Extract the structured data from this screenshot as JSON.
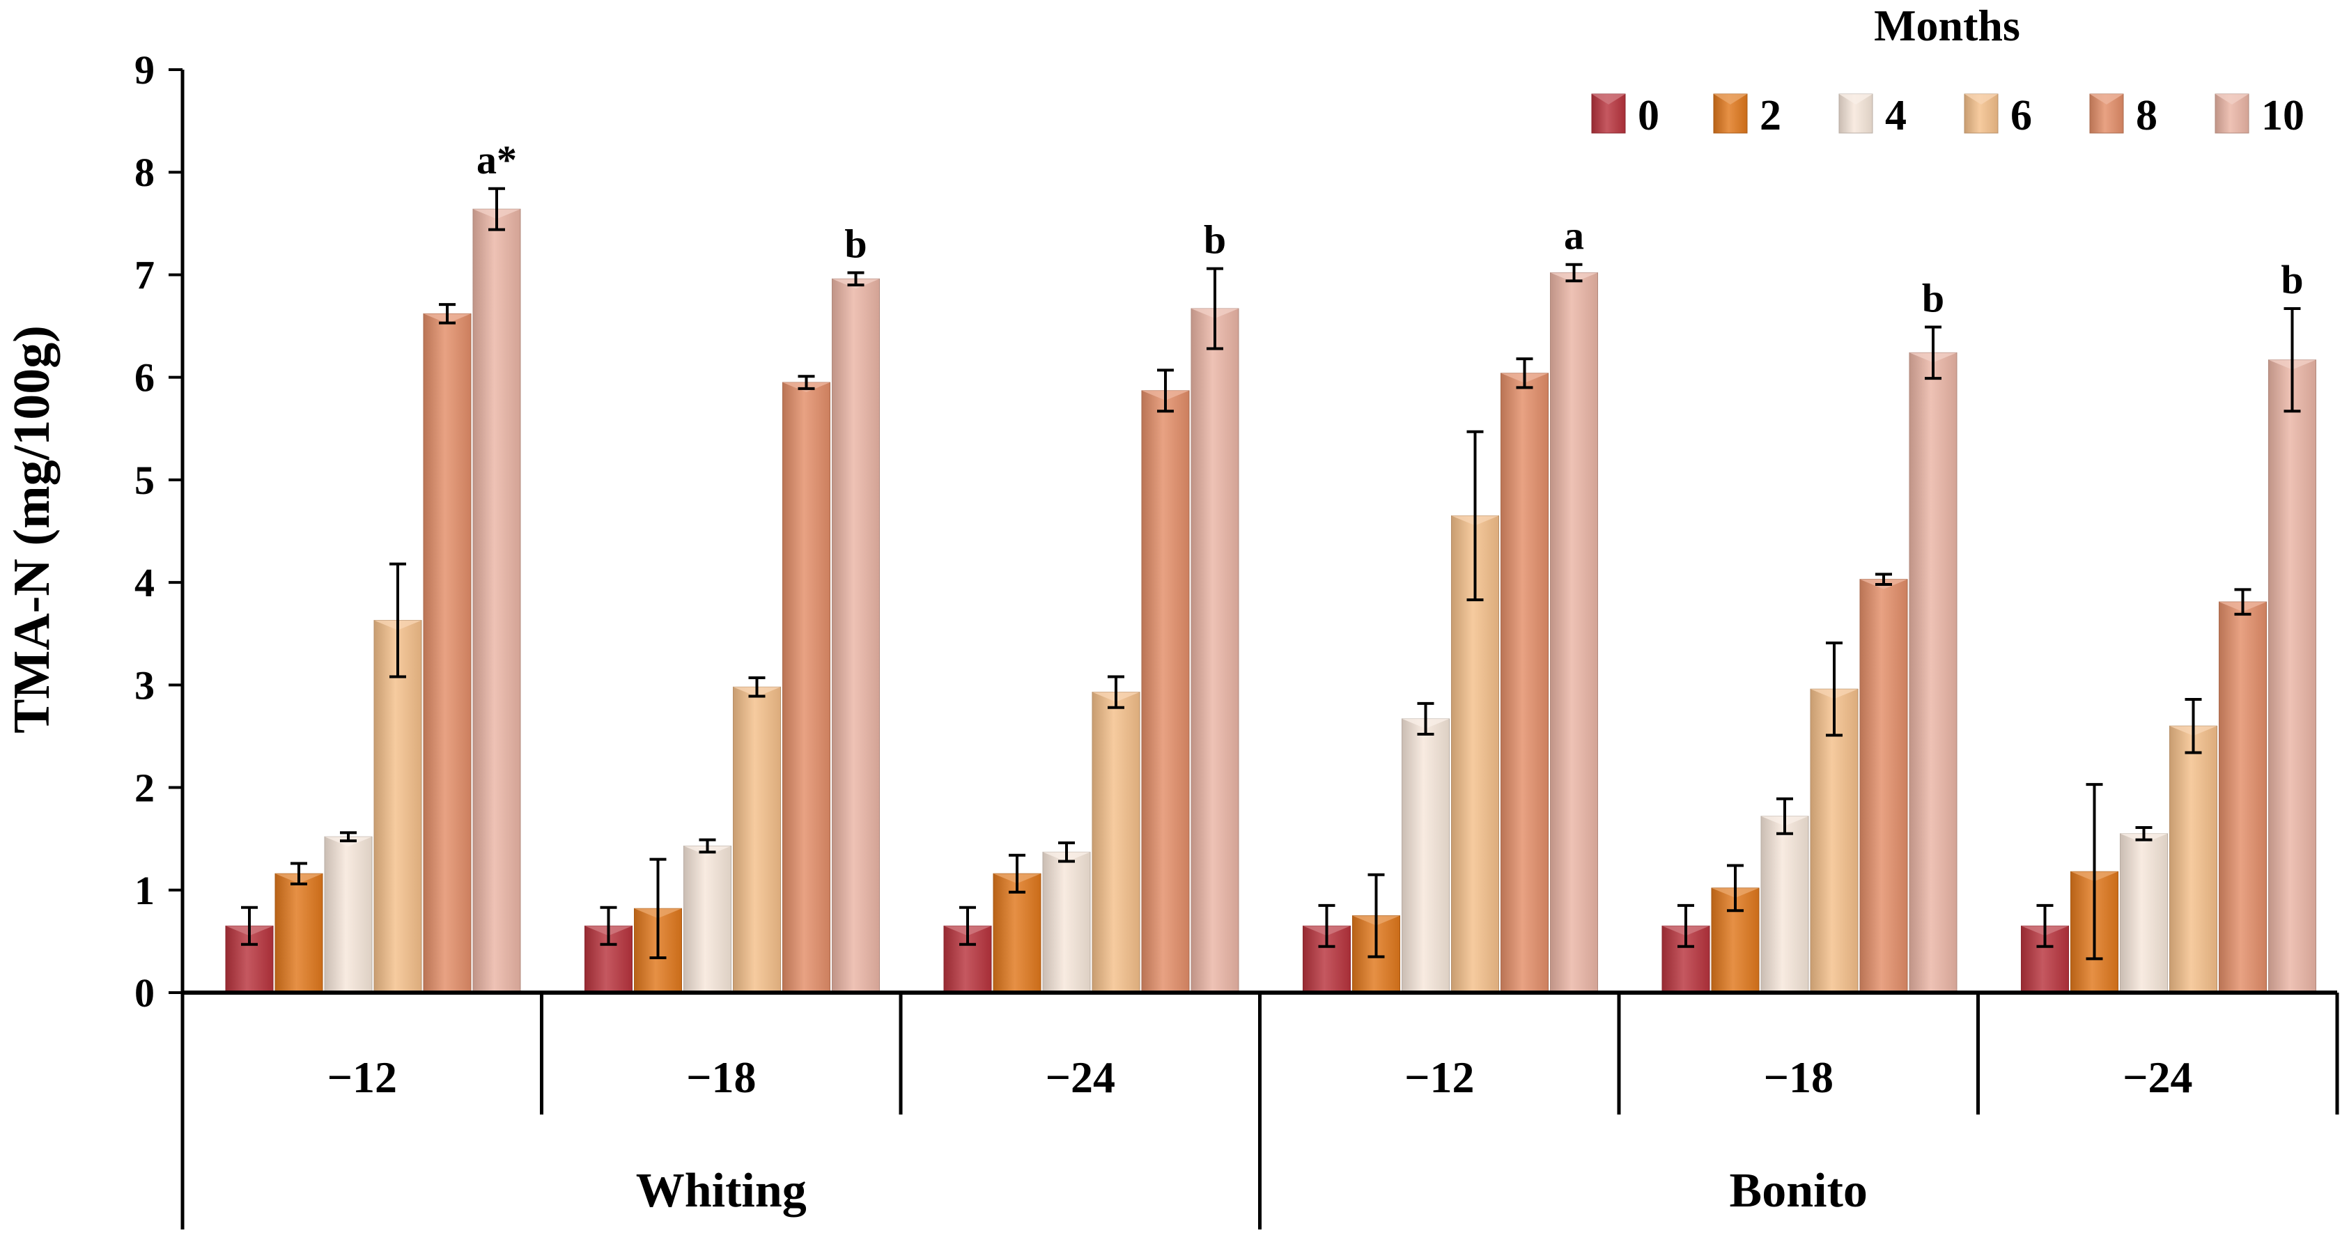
{
  "chart_data": {
    "type": "bar",
    "title": "",
    "xlabel": "",
    "ylabel": "TMA-N (mg/100g)",
    "ylim": [
      0,
      9
    ],
    "yticks": [
      0,
      1,
      2,
      3,
      4,
      5,
      6,
      7,
      8,
      9
    ],
    "grid": false,
    "legend": {
      "title": "Months",
      "placement": "top-right"
    },
    "groups": [
      {
        "name": "Whiting",
        "categories": [
          "−12",
          "−18",
          "−24"
        ]
      },
      {
        "name": "Bonito",
        "categories": [
          "−12",
          "−18",
          "−24"
        ]
      }
    ],
    "categories": [
      "−12",
      "−18",
      "−24",
      "−12",
      "−18",
      "−24"
    ],
    "series": [
      {
        "name": "0",
        "color": "#b8333d",
        "values": [
          0.65,
          0.65,
          0.65,
          0.65,
          0.65,
          0.65
        ],
        "errors": [
          0.18,
          0.18,
          0.18,
          0.2,
          0.2,
          0.2
        ]
      },
      {
        "name": "2",
        "color": "#e0781c",
        "values": [
          1.16,
          0.82,
          1.16,
          0.75,
          1.02,
          1.18
        ],
        "errors": [
          0.1,
          0.48,
          0.18,
          0.4,
          0.22,
          0.85
        ]
      },
      {
        "name": "4",
        "color": "#f6e7da",
        "values": [
          1.52,
          1.43,
          1.37,
          2.67,
          1.72,
          1.55
        ],
        "errors": [
          0.04,
          0.06,
          0.09,
          0.15,
          0.17,
          0.06
        ]
      },
      {
        "name": "6",
        "color": "#f4bf8a",
        "values": [
          3.63,
          2.98,
          2.93,
          4.65,
          2.96,
          2.6
        ],
        "errors": [
          0.55,
          0.09,
          0.15,
          0.82,
          0.45,
          0.26
        ]
      },
      {
        "name": "8",
        "color": "#e38d68",
        "values": [
          6.62,
          5.95,
          5.87,
          6.04,
          4.03,
          3.81
        ],
        "errors": [
          0.09,
          0.06,
          0.2,
          0.14,
          0.05,
          0.12
        ]
      },
      {
        "name": "10",
        "color": "#eab5a5",
        "values": [
          7.64,
          6.96,
          6.67,
          7.02,
          6.24,
          6.17
        ],
        "errors": [
          0.2,
          0.06,
          0.39,
          0.08,
          0.25,
          0.5
        ]
      }
    ],
    "annotations": [
      "a*",
      "b",
      "b",
      "a",
      "b",
      "b"
    ]
  }
}
